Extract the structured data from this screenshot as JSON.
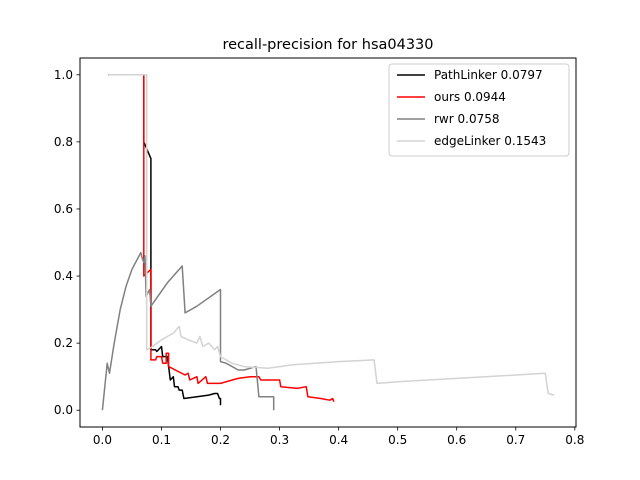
{
  "chart_data": {
    "type": "line",
    "title": "recall-precision for hsa04330",
    "xlabel": "",
    "ylabel": "",
    "xlim": [
      -0.038,
      0.802
    ],
    "ylim": [
      -0.05,
      1.05
    ],
    "xticks": [
      0.0,
      0.1,
      0.2,
      0.3,
      0.4,
      0.5,
      0.6,
      0.7,
      0.8
    ],
    "xtick_labels": [
      "0.0",
      "0.1",
      "0.2",
      "0.3",
      "0.4",
      "0.5",
      "0.6",
      "0.7",
      "0.8"
    ],
    "yticks": [
      0.0,
      0.2,
      0.4,
      0.6,
      0.8,
      1.0
    ],
    "ytick_labels": [
      "0.0",
      "0.2",
      "0.4",
      "0.6",
      "0.8",
      "1.0"
    ],
    "grid": false,
    "legend_position": "upper right",
    "series": [
      {
        "name": "PathLinker 0.0797",
        "color": "#000000",
        "points": [
          [
            0.01,
            1.0
          ],
          [
            0.07,
            1.0
          ],
          [
            0.07,
            0.8
          ],
          [
            0.082,
            0.75
          ],
          [
            0.082,
            0.18
          ],
          [
            0.09,
            0.18
          ],
          [
            0.092,
            0.175
          ],
          [
            0.1,
            0.19
          ],
          [
            0.102,
            0.16
          ],
          [
            0.11,
            0.16
          ],
          [
            0.115,
            0.09
          ],
          [
            0.12,
            0.1
          ],
          [
            0.122,
            0.07
          ],
          [
            0.128,
            0.07
          ],
          [
            0.13,
            0.06
          ],
          [
            0.135,
            0.06
          ],
          [
            0.138,
            0.035
          ],
          [
            0.16,
            0.04
          ],
          [
            0.18,
            0.045
          ],
          [
            0.19,
            0.05
          ],
          [
            0.195,
            0.05
          ],
          [
            0.198,
            0.035
          ],
          [
            0.2,
            0.035
          ],
          [
            0.2,
            0.015
          ]
        ]
      },
      {
        "name": "ours 0.0944",
        "color": "#ff0000",
        "points": [
          [
            0.01,
            1.0
          ],
          [
            0.07,
            1.0
          ],
          [
            0.07,
            0.4
          ],
          [
            0.082,
            0.42
          ],
          [
            0.082,
            0.15
          ],
          [
            0.09,
            0.15
          ],
          [
            0.092,
            0.16
          ],
          [
            0.1,
            0.16
          ],
          [
            0.102,
            0.14
          ],
          [
            0.108,
            0.14
          ],
          [
            0.108,
            0.17
          ],
          [
            0.112,
            0.17
          ],
          [
            0.112,
            0.13
          ],
          [
            0.14,
            0.105
          ],
          [
            0.145,
            0.11
          ],
          [
            0.148,
            0.09
          ],
          [
            0.16,
            0.1
          ],
          [
            0.162,
            0.08
          ],
          [
            0.175,
            0.1
          ],
          [
            0.178,
            0.08
          ],
          [
            0.2,
            0.08
          ],
          [
            0.22,
            0.09
          ],
          [
            0.23,
            0.095
          ],
          [
            0.25,
            0.1
          ],
          [
            0.265,
            0.1
          ],
          [
            0.268,
            0.09
          ],
          [
            0.3,
            0.09
          ],
          [
            0.302,
            0.07
          ],
          [
            0.33,
            0.065
          ],
          [
            0.345,
            0.07
          ],
          [
            0.348,
            0.04
          ],
          [
            0.37,
            0.035
          ],
          [
            0.385,
            0.03
          ],
          [
            0.39,
            0.035
          ],
          [
            0.392,
            0.025
          ]
        ]
      },
      {
        "name": "rwr 0.0758",
        "color": "#808080",
        "points": [
          [
            0.0,
            0.0
          ],
          [
            0.008,
            0.14
          ],
          [
            0.012,
            0.11
          ],
          [
            0.02,
            0.2
          ],
          [
            0.03,
            0.3
          ],
          [
            0.04,
            0.37
          ],
          [
            0.05,
            0.42
          ],
          [
            0.065,
            0.47
          ],
          [
            0.068,
            0.45
          ],
          [
            0.07,
            0.44
          ],
          [
            0.072,
            0.46
          ],
          [
            0.074,
            0.34
          ],
          [
            0.08,
            0.36
          ],
          [
            0.082,
            0.31
          ],
          [
            0.11,
            0.38
          ],
          [
            0.135,
            0.43
          ],
          [
            0.14,
            0.29
          ],
          [
            0.16,
            0.31
          ],
          [
            0.2,
            0.36
          ],
          [
            0.2,
            0.145
          ],
          [
            0.21,
            0.14
          ],
          [
            0.23,
            0.12
          ],
          [
            0.24,
            0.12
          ],
          [
            0.26,
            0.13
          ],
          [
            0.265,
            0.04
          ],
          [
            0.29,
            0.04
          ],
          [
            0.29,
            0.0
          ]
        ]
      },
      {
        "name": "edgeLinker 0.1543",
        "color": "#d3d3d3",
        "points": [
          [
            0.01,
            1.0
          ],
          [
            0.075,
            1.0
          ],
          [
            0.075,
            0.18
          ],
          [
            0.085,
            0.19
          ],
          [
            0.1,
            0.21
          ],
          [
            0.12,
            0.23
          ],
          [
            0.13,
            0.25
          ],
          [
            0.133,
            0.22
          ],
          [
            0.145,
            0.21
          ],
          [
            0.16,
            0.2
          ],
          [
            0.165,
            0.22
          ],
          [
            0.17,
            0.19
          ],
          [
            0.18,
            0.2
          ],
          [
            0.19,
            0.18
          ],
          [
            0.195,
            0.19
          ],
          [
            0.2,
            0.16
          ],
          [
            0.22,
            0.14
          ],
          [
            0.24,
            0.13
          ],
          [
            0.28,
            0.125
          ],
          [
            0.3,
            0.13
          ],
          [
            0.32,
            0.135
          ],
          [
            0.4,
            0.145
          ],
          [
            0.46,
            0.15
          ],
          [
            0.465,
            0.08
          ],
          [
            0.5,
            0.085
          ],
          [
            0.6,
            0.095
          ],
          [
            0.7,
            0.105
          ],
          [
            0.75,
            0.11
          ],
          [
            0.755,
            0.05
          ],
          [
            0.765,
            0.045
          ]
        ]
      }
    ]
  }
}
